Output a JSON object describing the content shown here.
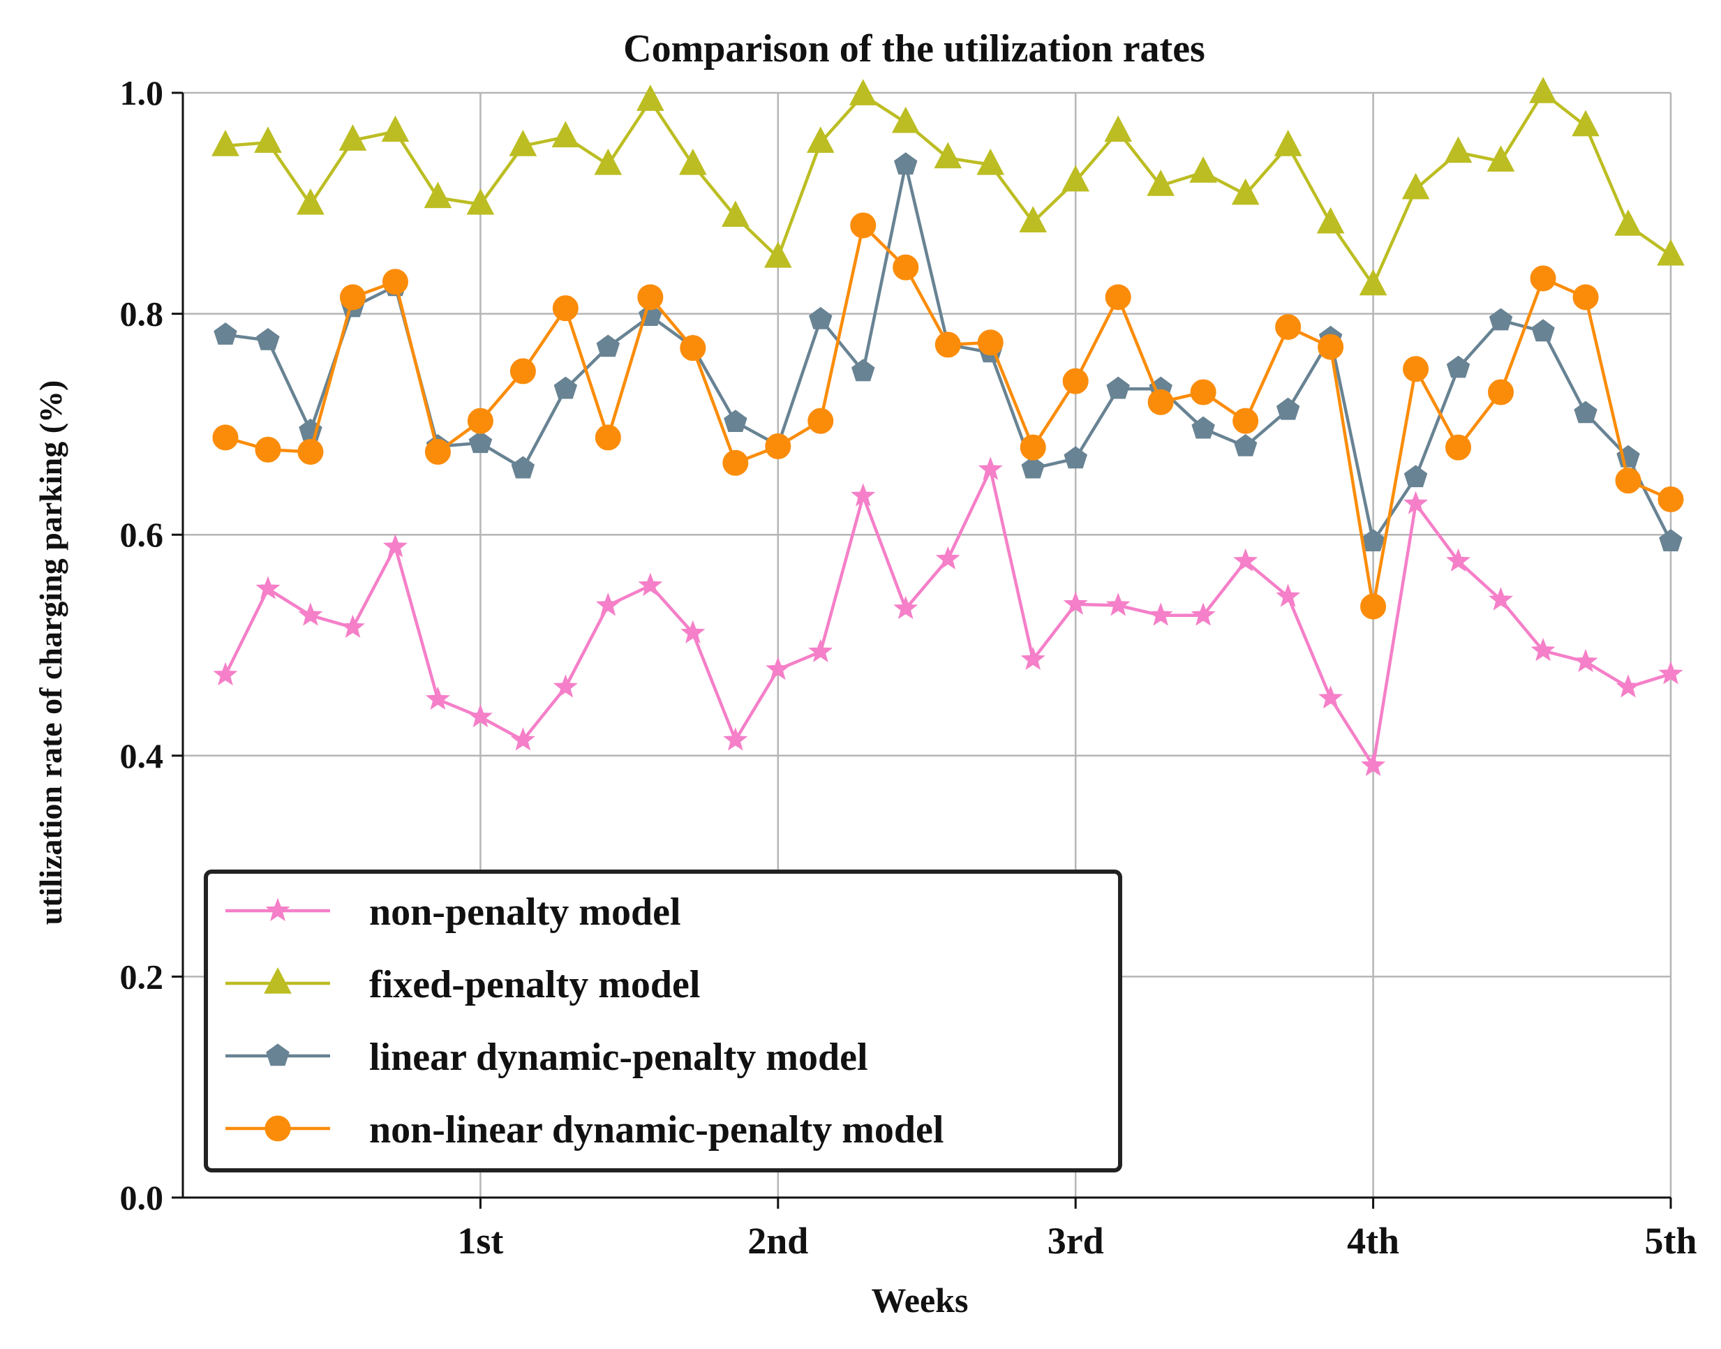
{
  "chart_data": {
    "type": "line",
    "title": "Comparison of the utilization rates",
    "xlabel": "Weeks",
    "ylabel": "utilization rate of charging parking (%)",
    "xlim": [
      0,
      5
    ],
    "ylim": [
      0.0,
      1.0
    ],
    "x_ticks": [
      1,
      2,
      3,
      4,
      5
    ],
    "x_tick_labels": [
      "1st",
      "2nd",
      "3rd",
      "4th",
      "5th"
    ],
    "y_ticks": [
      0.0,
      0.2,
      0.4,
      0.6,
      0.8,
      1.0
    ],
    "y_tick_labels": [
      "0.0",
      "0.2",
      "0.4",
      "0.6",
      "0.8",
      "1.0"
    ],
    "grid": true,
    "legend_position": "lower-left",
    "x": [
      0.143,
      0.286,
      0.429,
      0.571,
      0.714,
      0.857,
      1.0,
      1.143,
      1.286,
      1.429,
      1.571,
      1.714,
      1.857,
      2.0,
      2.143,
      2.286,
      2.429,
      2.571,
      2.714,
      2.857,
      3.0,
      3.143,
      3.286,
      3.429,
      3.571,
      3.714,
      3.857,
      4.0,
      4.143,
      4.286,
      4.429,
      4.571,
      4.714,
      4.857,
      5.0
    ],
    "series": [
      {
        "name": "non-penalty model",
        "color": "#f57fc8",
        "marker": "star",
        "values": [
          0.473,
          0.551,
          0.527,
          0.516,
          0.589,
          0.451,
          0.435,
          0.414,
          0.462,
          0.536,
          0.554,
          0.511,
          0.414,
          0.478,
          0.494,
          0.635,
          0.533,
          0.578,
          0.659,
          0.487,
          0.537,
          0.536,
          0.527,
          0.527,
          0.576,
          0.544,
          0.452,
          0.391,
          0.628,
          0.576,
          0.541,
          0.495,
          0.485,
          0.462,
          0.474
        ]
      },
      {
        "name": "fixed-penalty model",
        "color": "#bcbd22",
        "marker": "triangle",
        "values": [
          0.952,
          0.955,
          0.899,
          0.957,
          0.965,
          0.905,
          0.899,
          0.952,
          0.96,
          0.935,
          0.993,
          0.935,
          0.888,
          0.851,
          0.955,
          0.998,
          0.973,
          0.941,
          0.935,
          0.883,
          0.92,
          0.965,
          0.916,
          0.928,
          0.908,
          0.952,
          0.882,
          0.826,
          0.913,
          0.946,
          0.938,
          1.0,
          0.97,
          0.88,
          0.853
        ]
      },
      {
        "name": "linear dynamic-penalty model",
        "color": "#688393",
        "marker": "pentagon",
        "values": [
          0.781,
          0.776,
          0.694,
          0.806,
          0.825,
          0.68,
          0.683,
          0.66,
          0.732,
          0.77,
          0.798,
          0.77,
          0.702,
          0.681,
          0.795,
          0.748,
          0.935,
          0.772,
          0.765,
          0.66,
          0.669,
          0.732,
          0.732,
          0.696,
          0.68,
          0.713,
          0.778,
          0.594,
          0.652,
          0.751,
          0.794,
          0.784,
          0.71,
          0.67,
          0.594
        ]
      },
      {
        "name": "non-linear dynamic-penalty model",
        "color": "#fb8c0a",
        "marker": "circle",
        "values": [
          0.688,
          0.677,
          0.675,
          0.815,
          0.829,
          0.675,
          0.703,
          0.748,
          0.805,
          0.688,
          0.815,
          0.769,
          0.665,
          0.68,
          0.703,
          0.88,
          0.842,
          0.772,
          0.774,
          0.679,
          0.739,
          0.815,
          0.72,
          0.729,
          0.703,
          0.788,
          0.77,
          0.535,
          0.75,
          0.679,
          0.729,
          0.832,
          0.815,
          0.649,
          0.632
        ]
      }
    ]
  }
}
